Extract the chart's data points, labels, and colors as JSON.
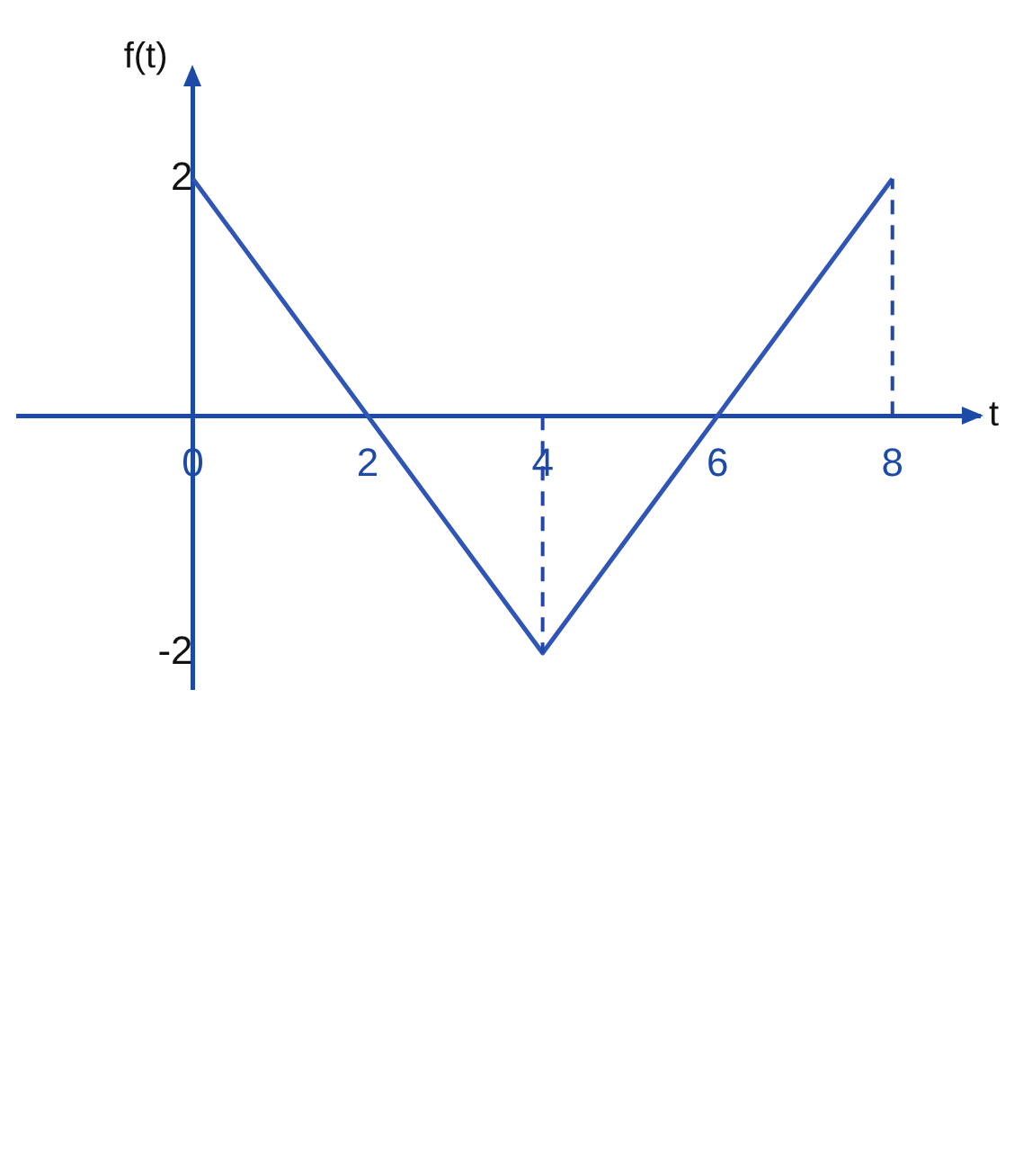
{
  "chart_data": {
    "type": "line",
    "xlabel": "t",
    "ylabel": "f(t)",
    "x": [
      0,
      4,
      8
    ],
    "series": [
      {
        "color": "#2f55b5",
        "values": [
          2,
          -2,
          2
        ]
      }
    ],
    "xlim": [
      -2,
      9
    ],
    "ylim": [
      -2.3,
      2.9
    ],
    "xticks": [
      0,
      2,
      4,
      6,
      8
    ],
    "yticks": [
      -2,
      2
    ],
    "grid": false,
    "legend": false,
    "marker": "none",
    "line_style": "solid",
    "ref_lines": [
      {
        "axis": "x",
        "value": 4,
        "line_style": "dashed",
        "color": "#2448a8"
      },
      {
        "axis": "x",
        "value": 8,
        "line_style": "dashed",
        "color": "#2448a8"
      }
    ]
  }
}
